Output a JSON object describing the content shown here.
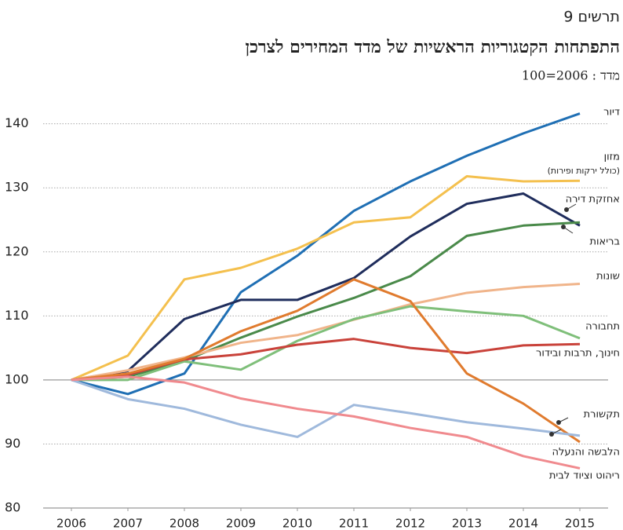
{
  "chart_data": {
    "type": "line",
    "figure_label": "תרשים 9",
    "title": "התפתחות הקטגוריות הראשיות של מדד המחירים לצרכן",
    "subtitle": "מדד : 2006=100",
    "x": [
      2006,
      2007,
      2008,
      2009,
      2010,
      2011,
      2012,
      2013,
      2014,
      2015
    ],
    "xlim": [
      2005.5,
      2015.5
    ],
    "xticks": [
      2006,
      2007,
      2008,
      2009,
      2010,
      2011,
      2012,
      2013,
      2014,
      2015
    ],
    "ylim": [
      80,
      144
    ],
    "yticks": [
      80,
      90,
      100,
      110,
      120,
      130,
      140
    ],
    "grid": true,
    "series": [
      {
        "name": "דיור",
        "color": "#1f6fb4",
        "values": [
          100,
          97.8,
          101,
          113.7,
          119.4,
          126.4,
          131,
          135,
          138.5,
          141.6
        ]
      },
      {
        "name": "מזון",
        "name_note": "(כולל ירקות ופירות)",
        "color": "#f4c04e",
        "values": [
          100,
          103.8,
          115.7,
          117.5,
          120.5,
          124.6,
          125.4,
          131.8,
          131,
          131.1
        ]
      },
      {
        "name": "אחזקת דירה",
        "color": "#1f2d5c",
        "values": [
          100,
          101.4,
          109.5,
          112.5,
          112.5,
          115.9,
          122.4,
          127.5,
          129.1,
          124.1
        ]
      },
      {
        "name": "בריאות",
        "color": "#4a8a4a",
        "values": [
          100,
          100.5,
          103,
          106.6,
          109.9,
          112.8,
          116.2,
          122.5,
          124.1,
          124.6
        ]
      },
      {
        "name": "שונות",
        "color": "#f0b48a",
        "values": [
          100,
          101.5,
          103.5,
          105.8,
          107,
          109.4,
          111.8,
          113.6,
          114.5,
          115
        ]
      },
      {
        "name": "תחבורה",
        "color": "#7fbf7a",
        "values": [
          100,
          100,
          102.9,
          101.6,
          106.1,
          109.5,
          111.5,
          110.7,
          110,
          106.5
        ]
      },
      {
        "name": "חינוך, תרבות ובידור",
        "color": "#c9423a",
        "values": [
          100,
          100.8,
          103.2,
          104,
          105.5,
          106.4,
          105,
          104.2,
          105.4,
          105.6
        ]
      },
      {
        "name": "תקשורת",
        "color": "#e07b2e",
        "values": [
          100,
          101,
          103.3,
          107.6,
          110.8,
          115.7,
          112.3,
          101,
          96.3,
          90.3
        ]
      },
      {
        "name": "הלבשה והנעלה",
        "color": "#9fb9dc",
        "values": [
          100,
          97,
          95.5,
          93,
          91.1,
          96.1,
          94.8,
          93.4,
          92.4,
          91.3
        ]
      },
      {
        "name": "ריהוט וציוד לבית",
        "color": "#f08a8e",
        "values": [
          100,
          100.5,
          99.6,
          97.1,
          95.5,
          94.3,
          92.5,
          91.1,
          88.1,
          86.2
        ]
      }
    ]
  }
}
